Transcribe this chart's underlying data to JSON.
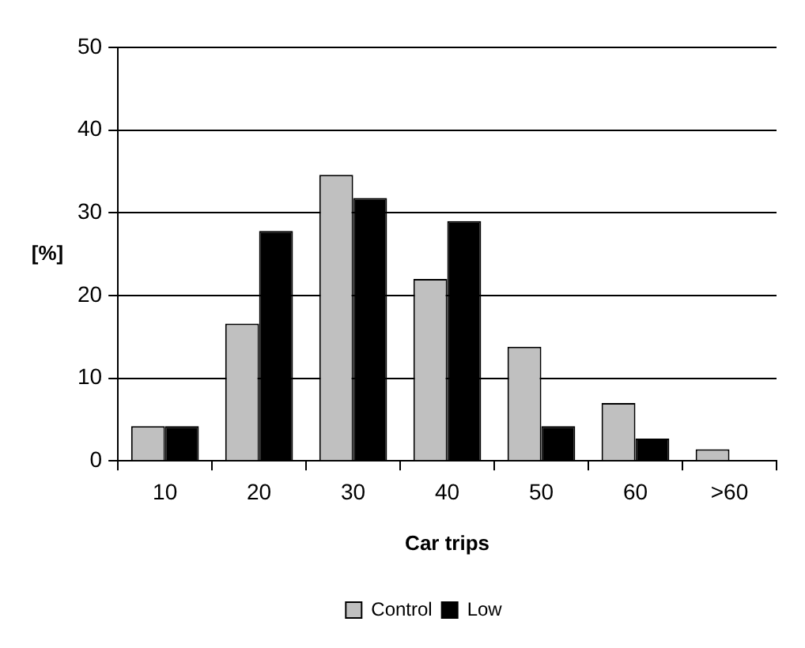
{
  "chart_data": {
    "type": "bar",
    "xlabel": "Car trips",
    "ylabel": "[%]",
    "categories": [
      "10",
      "20",
      "30",
      "40",
      "50",
      "60",
      ">60"
    ],
    "series": [
      {
        "name": "Control",
        "color": "#c0c0c0",
        "values": [
          4.2,
          16.6,
          34.6,
          22,
          13.8,
          7,
          1.4
        ]
      },
      {
        "name": "Low",
        "color": "#000000",
        "values": [
          4.2,
          27.8,
          31.8,
          29,
          4.2,
          2.7,
          0
        ]
      }
    ],
    "ylim": [
      0,
      50
    ],
    "yticks": [
      0,
      10,
      20,
      30,
      40,
      50
    ],
    "grid": "y",
    "legend": "bottom"
  }
}
